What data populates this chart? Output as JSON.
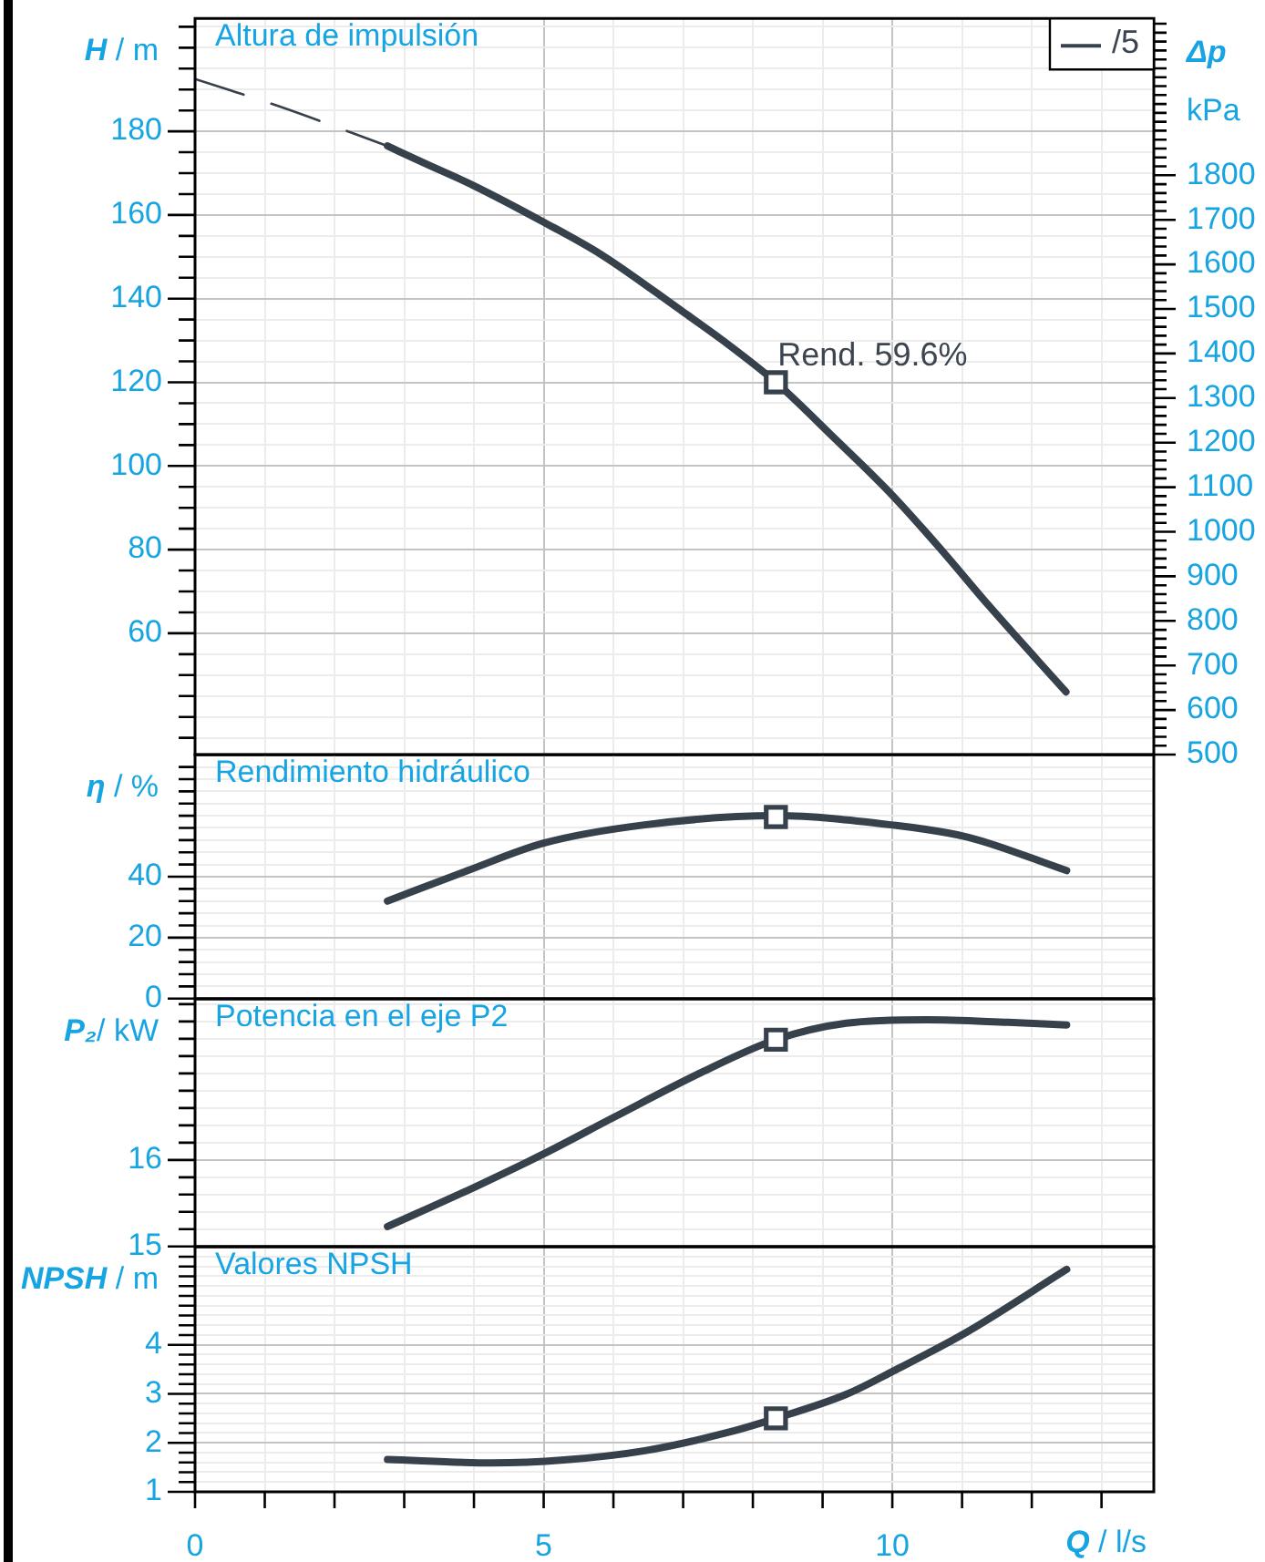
{
  "chart_data": [
    {
      "type": "line",
      "title": "Altura de impulsión",
      "ylabel": "H / m",
      "y2label": "Δp kPa",
      "tick_labels": "y",
      "grid": true,
      "legend": "top right",
      "marker": "none",
      "xlim": [
        0,
        13.75
      ],
      "xticks": [
        0,
        {
          "value": 1,
          "label": null
        },
        {
          "value": 2,
          "label": null
        },
        {
          "value": 3,
          "label": null
        },
        {
          "value": 4,
          "label": null
        },
        5,
        {
          "value": 6,
          "label": null
        },
        {
          "value": 7,
          "label": null
        },
        {
          "value": 8,
          "label": null
        },
        {
          "value": 9,
          "label": null
        },
        10,
        {
          "value": 11,
          "label": null
        },
        {
          "value": 12,
          "label": null
        },
        {
          "value": 13,
          "label": null
        }
      ],
      "ylim": [
        31,
        207
      ],
      "yticks": [
        {
          "value": 35,
          "label": null
        },
        {
          "value": 40,
          "label": null
        },
        {
          "value": 45,
          "label": null
        },
        {
          "value": 50,
          "label": null
        },
        {
          "value": 55,
          "label": null
        },
        60,
        {
          "value": 65,
          "label": null
        },
        {
          "value": 70,
          "label": null
        },
        {
          "value": 75,
          "label": null
        },
        80,
        {
          "value": 85,
          "label": null
        },
        {
          "value": 90,
          "label": null
        },
        {
          "value": 95,
          "label": null
        },
        100,
        {
          "value": 105,
          "label": null
        },
        {
          "value": 110,
          "label": null
        },
        {
          "value": 115,
          "label": null
        },
        120,
        {
          "value": 125,
          "label": null
        },
        {
          "value": 130,
          "label": null
        },
        {
          "value": 135,
          "label": null
        },
        140,
        {
          "value": 145,
          "label": null
        },
        {
          "value": 150,
          "label": null
        },
        {
          "value": 155,
          "label": null
        },
        160,
        {
          "value": 165,
          "label": null
        },
        {
          "value": 170,
          "label": null
        },
        {
          "value": 175,
          "label": null
        },
        180,
        {
          "value": 185,
          "label": null
        },
        {
          "value": 190,
          "label": null
        },
        {
          "value": 195,
          "label": null
        },
        {
          "value": 200,
          "label": null
        },
        {
          "value": 205,
          "label": null
        }
      ],
      "y2lim": [
        500,
        2152
      ],
      "y2ticks": [
        500,
        {
          "value": 520,
          "label": null
        },
        {
          "value": 540,
          "label": null
        },
        {
          "value": 560,
          "label": null
        },
        {
          "value": 580,
          "label": null
        },
        600,
        {
          "value": 620,
          "label": null
        },
        {
          "value": 640,
          "label": null
        },
        {
          "value": 660,
          "label": null
        },
        {
          "value": 680,
          "label": null
        },
        700,
        {
          "value": 720,
          "label": null
        },
        {
          "value": 740,
          "label": null
        },
        {
          "value": 760,
          "label": null
        },
        {
          "value": 780,
          "label": null
        },
        800,
        {
          "value": 820,
          "label": null
        },
        {
          "value": 840,
          "label": null
        },
        {
          "value": 860,
          "label": null
        },
        {
          "value": 880,
          "label": null
        },
        900,
        {
          "value": 920,
          "label": null
        },
        {
          "value": 940,
          "label": null
        },
        {
          "value": 960,
          "label": null
        },
        {
          "value": 980,
          "label": null
        },
        1000,
        {
          "value": 1020,
          "label": null
        },
        {
          "value": 1040,
          "label": null
        },
        {
          "value": 1060,
          "label": null
        },
        {
          "value": 1080,
          "label": null
        },
        1100,
        {
          "value": 1120,
          "label": null
        },
        {
          "value": 1140,
          "label": null
        },
        {
          "value": 1160,
          "label": null
        },
        {
          "value": 1180,
          "label": null
        },
        1200,
        {
          "value": 1220,
          "label": null
        },
        {
          "value": 1240,
          "label": null
        },
        {
          "value": 1260,
          "label": null
        },
        {
          "value": 1280,
          "label": null
        },
        1300,
        {
          "value": 1320,
          "label": null
        },
        {
          "value": 1340,
          "label": null
        },
        {
          "value": 1360,
          "label": null
        },
        {
          "value": 1380,
          "label": null
        },
        1400,
        {
          "value": 1420,
          "label": null
        },
        {
          "value": 1440,
          "label": null
        },
        {
          "value": 1460,
          "label": null
        },
        {
          "value": 1480,
          "label": null
        },
        1500,
        {
          "value": 1520,
          "label": null
        },
        {
          "value": 1540,
          "label": null
        },
        {
          "value": 1560,
          "label": null
        },
        {
          "value": 1580,
          "label": null
        },
        1600,
        {
          "value": 1620,
          "label": null
        },
        {
          "value": 1640,
          "label": null
        },
        {
          "value": 1660,
          "label": null
        },
        {
          "value": 1680,
          "label": null
        },
        1700,
        {
          "value": 1720,
          "label": null
        },
        {
          "value": 1740,
          "label": null
        },
        {
          "value": 1760,
          "label": null
        },
        {
          "value": 1780,
          "label": null
        },
        1800,
        {
          "value": 1820,
          "label": null
        },
        {
          "value": 1840,
          "label": null
        },
        {
          "value": 1860,
          "label": null
        },
        {
          "value": 1880,
          "label": null
        },
        {
          "value": 1900,
          "label": null
        },
        {
          "value": 1920,
          "label": null
        },
        {
          "value": 1940,
          "label": null
        },
        {
          "value": 1960,
          "label": null
        },
        {
          "value": 1980,
          "label": null
        },
        {
          "value": 2000,
          "label": null
        },
        {
          "value": 2020,
          "label": null
        },
        {
          "value": 2040,
          "label": null
        },
        {
          "value": 2060,
          "label": null
        },
        {
          "value": 2080,
          "label": null
        },
        {
          "value": 2100,
          "label": null
        },
        {
          "value": 2120,
          "label": null
        },
        {
          "value": 2140,
          "label": null
        }
      ],
      "annotations": [
        {
          "text": "Rend. 59.6%",
          "x": 8.33,
          "y": 120
        }
      ],
      "series": [
        {
          "name": "/5",
          "color": "#37414c",
          "x": [
            2.76,
            3.3,
            4.0,
            5.0,
            5.83,
            6.96,
            7.57,
            8.33,
            9.13,
            10.0,
            10.7,
            11.4,
            12.49
          ],
          "values": [
            176.5,
            172.3,
            167,
            158.3,
            150.5,
            137.3,
            130,
            120,
            107.3,
            93,
            80,
            66.3,
            46
          ]
        },
        {
          "color": "#37414c",
          "line_style": "dashed",
          "x": [
            0,
            1.2,
            2.76
          ],
          "values": [
            192.5,
            186,
            176.5
          ]
        },
        {
          "type": "scatter",
          "marker": "square",
          "color": "#37414c",
          "x": [
            8.33
          ],
          "values": [
            120
          ]
        }
      ]
    },
    {
      "type": "line",
      "title": "Rendimiento hidráulico",
      "ylabel": "η / %",
      "tick_labels": "y",
      "grid": true,
      "marker": "none",
      "xlim": [
        0,
        13.75
      ],
      "xticks": [
        0,
        {
          "value": 1,
          "label": null
        },
        {
          "value": 2,
          "label": null
        },
        {
          "value": 3,
          "label": null
        },
        {
          "value": 4,
          "label": null
        },
        5,
        {
          "value": 6,
          "label": null
        },
        {
          "value": 7,
          "label": null
        },
        {
          "value": 8,
          "label": null
        },
        {
          "value": 9,
          "label": null
        },
        10,
        {
          "value": 11,
          "label": null
        },
        {
          "value": 12,
          "label": null
        },
        {
          "value": 13,
          "label": null
        }
      ],
      "ylim": [
        0,
        80
      ],
      "yticks": [
        0,
        {
          "value": 4,
          "label": null
        },
        {
          "value": 8,
          "label": null
        },
        {
          "value": 12,
          "label": null
        },
        {
          "value": 16,
          "label": null
        },
        20,
        {
          "value": 24,
          "label": null
        },
        {
          "value": 28,
          "label": null
        },
        {
          "value": 32,
          "label": null
        },
        {
          "value": 36,
          "label": null
        },
        40,
        {
          "value": 44,
          "label": null
        },
        {
          "value": 48,
          "label": null
        },
        {
          "value": 52,
          "label": null
        },
        {
          "value": 56,
          "label": null
        },
        {
          "value": 60,
          "label": null
        },
        {
          "value": 64,
          "label": null
        },
        {
          "value": 68,
          "label": null
        },
        {
          "value": 72,
          "label": null
        },
        {
          "value": 76,
          "label": null
        }
      ],
      "series": [
        {
          "color": "#37414c",
          "x": [
            2.76,
            3.91,
            5.0,
            6.45,
            8.33,
            9.98,
            11.08,
            12.5
          ],
          "values": [
            32,
            42,
            51,
            57,
            60,
            57,
            53,
            42
          ]
        },
        {
          "type": "scatter",
          "marker": "square",
          "color": "#37414c",
          "x": [
            8.33
          ],
          "values": [
            59.6
          ]
        }
      ]
    },
    {
      "type": "line",
      "title": "Potencia en el eje P2",
      "ylabel": "P₂/ kW",
      "tick_labels": "y",
      "grid": true,
      "marker": "none",
      "xlim": [
        0,
        13.75
      ],
      "xticks": [
        0,
        {
          "value": 1,
          "label": null
        },
        {
          "value": 2,
          "label": null
        },
        {
          "value": 3,
          "label": null
        },
        {
          "value": 4,
          "label": null
        },
        5,
        {
          "value": 6,
          "label": null
        },
        {
          "value": 7,
          "label": null
        },
        {
          "value": 8,
          "label": null
        },
        {
          "value": 9,
          "label": null
        },
        10,
        {
          "value": 11,
          "label": null
        },
        {
          "value": 12,
          "label": null
        },
        {
          "value": 13,
          "label": null
        }
      ],
      "ylim": [
        15,
        17.86
      ],
      "yticks": [
        15,
        {
          "value": 15.2,
          "label": null
        },
        {
          "value": 15.4,
          "label": null
        },
        {
          "value": 15.6,
          "label": null
        },
        {
          "value": 15.8,
          "label": null
        },
        16,
        {
          "value": 16.2,
          "label": null
        },
        {
          "value": 16.4,
          "label": null
        },
        {
          "value": 16.6,
          "label": null
        },
        {
          "value": 16.8,
          "label": null
        },
        {
          "value": 17,
          "label": null
        },
        {
          "value": 17.2,
          "label": null
        },
        {
          "value": 17.4,
          "label": null
        },
        {
          "value": 17.6,
          "label": null
        },
        {
          "value": 17.8,
          "label": null
        }
      ],
      "series": [
        {
          "color": "#37414c",
          "x": [
            2.76,
            4.02,
            5.0,
            6.0,
            7.26,
            8.33,
            9.34,
            10.5,
            11.66,
            12.5
          ],
          "values": [
            15.23,
            15.69,
            16.07,
            16.49,
            17.01,
            17.39,
            17.58,
            17.62,
            17.59,
            17.56
          ]
        },
        {
          "type": "scatter",
          "marker": "square",
          "color": "#37414c",
          "x": [
            8.33
          ],
          "values": [
            17.39
          ]
        }
      ]
    },
    {
      "type": "line",
      "title": "Valores NPSH",
      "ylabel": "NPSH / m",
      "xlabel": "Q / l/s",
      "grid": true,
      "marker": "none",
      "xlim": [
        0,
        13.75
      ],
      "xticks": [
        0,
        {
          "value": 1,
          "label": null
        },
        {
          "value": 2,
          "label": null
        },
        {
          "value": 3,
          "label": null
        },
        {
          "value": 4,
          "label": null
        },
        5,
        {
          "value": 6,
          "label": null
        },
        {
          "value": 7,
          "label": null
        },
        {
          "value": 8,
          "label": null
        },
        {
          "value": 9,
          "label": null
        },
        10,
        {
          "value": 11,
          "label": null
        },
        {
          "value": 12,
          "label": null
        },
        {
          "value": 13,
          "label": null
        }
      ],
      "ylim": [
        1,
        6
      ],
      "yticks": [
        1,
        {
          "value": 1.2,
          "label": null
        },
        {
          "value": 1.4,
          "label": null
        },
        {
          "value": 1.6,
          "label": null
        },
        {
          "value": 1.8,
          "label": null
        },
        2,
        {
          "value": 2.2,
          "label": null
        },
        {
          "value": 2.4,
          "label": null
        },
        {
          "value": 2.6,
          "label": null
        },
        {
          "value": 2.8,
          "label": null
        },
        3,
        {
          "value": 3.2,
          "label": null
        },
        {
          "value": 3.4,
          "label": null
        },
        {
          "value": 3.6,
          "label": null
        },
        {
          "value": 3.8,
          "label": null
        },
        4,
        {
          "value": 4.2,
          "label": null
        },
        {
          "value": 4.4,
          "label": null
        },
        {
          "value": 4.6,
          "label": null
        },
        {
          "value": 4.8,
          "label": null
        },
        {
          "value": 5,
          "label": null
        },
        {
          "value": 5.2,
          "label": null
        },
        {
          "value": 5.4,
          "label": null
        },
        {
          "value": 5.6,
          "label": null
        },
        {
          "value": 5.8,
          "label": null
        }
      ],
      "series": [
        {
          "color": "#37414c",
          "x": [
            2.76,
            4.26,
            5.29,
            6.45,
            7.61,
            8.33,
            9.34,
            9.98,
            11.08,
            12.5
          ],
          "values": [
            1.66,
            1.59,
            1.65,
            1.84,
            2.2,
            2.5,
            2.99,
            3.44,
            4.27,
            5.54
          ]
        },
        {
          "type": "scatter",
          "marker": "square",
          "color": "#37414c",
          "x": [
            8.33
          ],
          "values": [
            2.5
          ]
        }
      ]
    }
  ]
}
